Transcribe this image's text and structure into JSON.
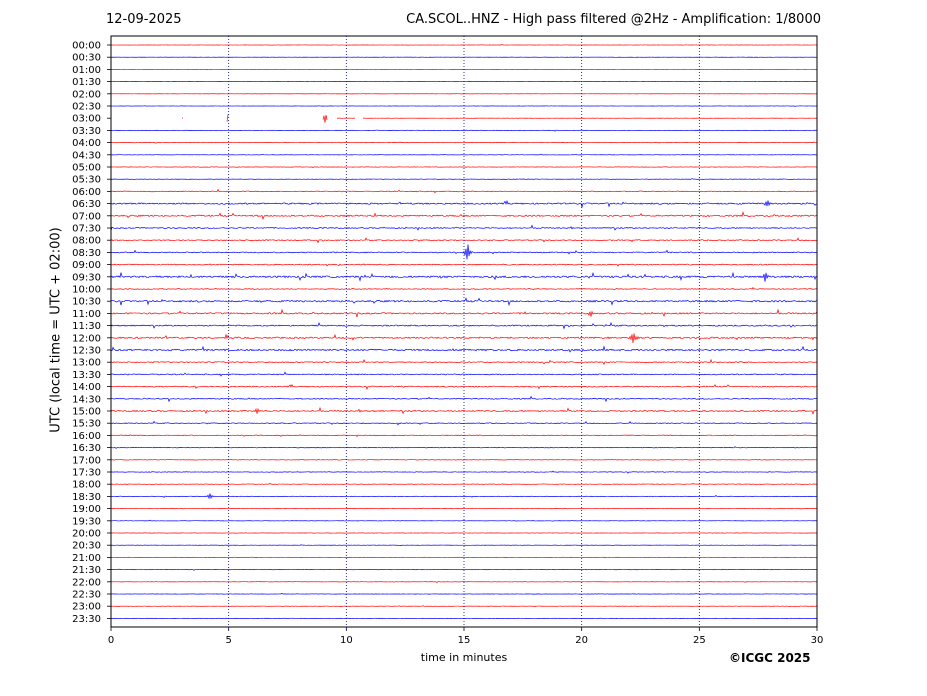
{
  "header": {
    "date": "12-09-2025",
    "title": "CA.SCOL..HNZ - High pass filtered @2Hz - Amplification: 1/8000"
  },
  "credit": "©ICGC 2025",
  "colors": {
    "odd_trace": "#ff0000",
    "even_trace": "#0000ff",
    "grid": "#00008b",
    "axis": "#000000"
  },
  "chart_data": {
    "type": "line",
    "subtype": "helicorder",
    "xlabel": "time in minutes",
    "ylabel": "UTC (local time = UTC + 02:00)",
    "xlim": [
      0,
      30
    ],
    "xticks": [
      0,
      5,
      10,
      15,
      20,
      25,
      30
    ],
    "vertical_gridlines": [
      5,
      10,
      15,
      20,
      25
    ],
    "grid": "vertical dotted",
    "row_labels": [
      "00:00",
      "00:30",
      "01:00",
      "01:30",
      "02:00",
      "02:30",
      "03:00",
      "03:30",
      "04:00",
      "04:30",
      "05:00",
      "05:30",
      "06:00",
      "06:30",
      "07:00",
      "07:30",
      "08:00",
      "08:30",
      "09:00",
      "09:30",
      "10:00",
      "10:30",
      "11:00",
      "11:30",
      "12:00",
      "12:30",
      "13:00",
      "13:30",
      "14:00",
      "14:30",
      "15:00",
      "15:30",
      "16:00",
      "16:30",
      "17:00",
      "17:30",
      "18:00",
      "18:30",
      "19:00",
      "19:30",
      "20:00",
      "20:30",
      "21:00",
      "21:30",
      "22:00",
      "22:30",
      "23:00",
      "23:30"
    ],
    "trace_colors_alternate": [
      "red",
      "blue"
    ],
    "noise_level": [
      0.2,
      0.2,
      0.2,
      0.2,
      0.2,
      0.2,
      0.2,
      0.3,
      0.3,
      0.3,
      0.4,
      0.4,
      0.8,
      1.4,
      1.4,
      1.0,
      1.0,
      1.0,
      1.0,
      1.8,
      0.8,
      1.6,
      1.4,
      1.2,
      1.4,
      1.6,
      1.0,
      1.0,
      1.0,
      0.9,
      1.2,
      0.8,
      0.8,
      0.6,
      0.5,
      0.5,
      0.5,
      0.4,
      0.3,
      0.3,
      0.3,
      0.3,
      0.3,
      0.3,
      0.3,
      0.3,
      0.3,
      0.3
    ],
    "events": [
      {
        "row": "03:00",
        "minute": 4.95,
        "amplitude": 5
      },
      {
        "row": "03:00",
        "minute": 9.1,
        "amplitude": 5
      },
      {
        "row": "06:30",
        "minute": 27.9,
        "amplitude": 4
      },
      {
        "row": "08:30",
        "minute": 15.15,
        "amplitude": 10
      },
      {
        "row": "09:30",
        "minute": 27.8,
        "amplitude": 6
      },
      {
        "row": "11:00",
        "minute": 20.4,
        "amplitude": 4
      },
      {
        "row": "12:00",
        "minute": 22.2,
        "amplitude": 7
      },
      {
        "row": "15:00",
        "minute": 6.2,
        "amplitude": 3
      },
      {
        "row": "18:30",
        "minute": 4.2,
        "amplitude": 3
      }
    ],
    "gaps": [
      {
        "row": "03:00",
        "from": 0,
        "to": 3.0
      },
      {
        "row": "03:00",
        "from": 3.1,
        "to": 4.9
      },
      {
        "row": "03:00",
        "from": 5.0,
        "to": 9.0
      },
      {
        "row": "03:00",
        "from": 9.2,
        "to": 9.6
      },
      {
        "row": "03:00",
        "from": 10.4,
        "to": 10.7
      }
    ]
  }
}
